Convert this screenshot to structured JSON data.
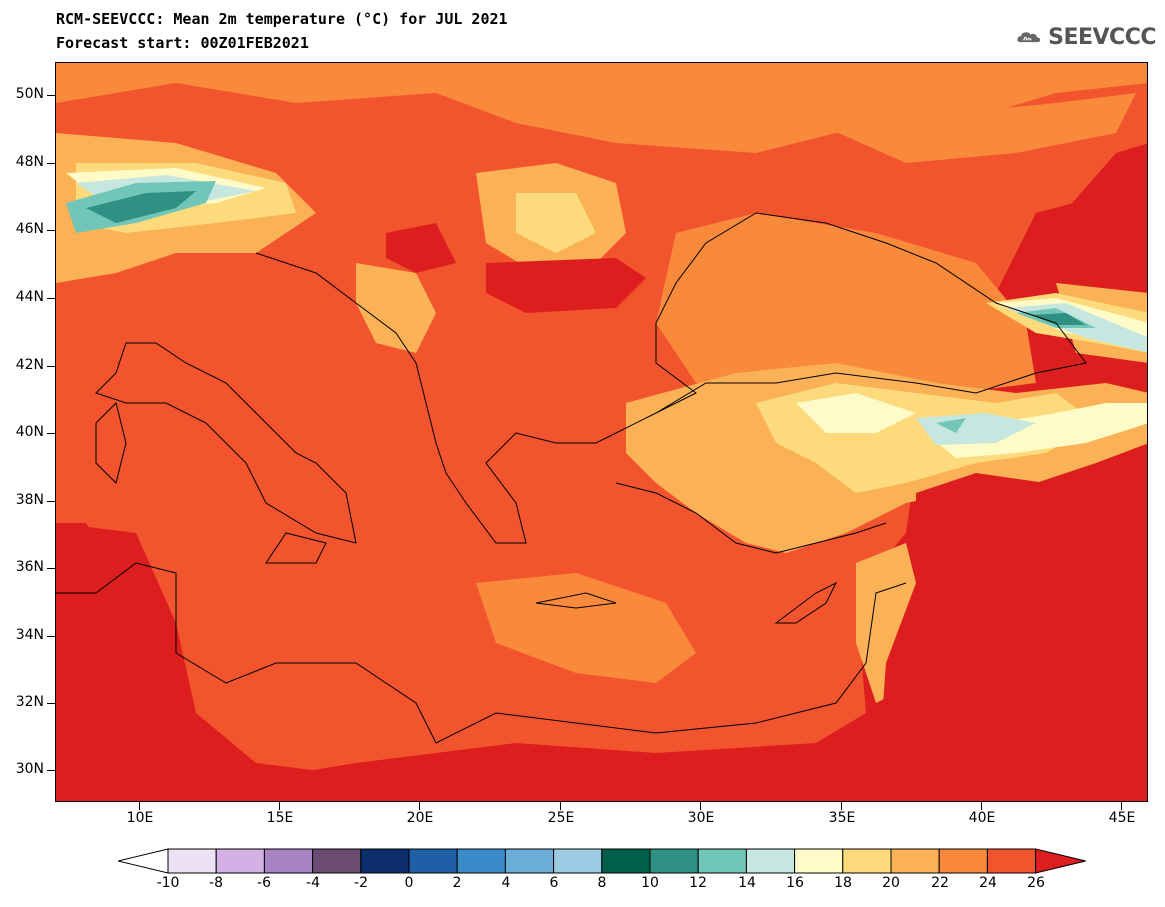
{
  "header": {
    "title_line1": "RCM-SEEVCCC: Mean 2m temperature (°C) for JUL 2021",
    "title_line2": "Forecast start: 00Z01FEB2021"
  },
  "logo": {
    "text": "SEEVCCC",
    "icon": "cloud-icon"
  },
  "map": {
    "lat_labels": [
      "50N",
      "48N",
      "46N",
      "44N",
      "42N",
      "40N",
      "38N",
      "36N",
      "34N",
      "32N",
      "30N"
    ],
    "lon_labels": [
      "10E",
      "15E",
      "20E",
      "25E",
      "30E",
      "35E",
      "40E",
      "45E"
    ]
  },
  "colorbar": {
    "labels": [
      "-10",
      "-8",
      "-6",
      "-4",
      "-2",
      "0",
      "2",
      "4",
      "6",
      "8",
      "10",
      "12",
      "14",
      "16",
      "18",
      "20",
      "22",
      "24",
      "26"
    ],
    "colors": [
      "#ffffff",
      "#ede2f4",
      "#d4b0e4",
      "#a884c4",
      "#6b4b72",
      "#0b2e6b",
      "#1f5fa6",
      "#3b8bc8",
      "#6aaed8",
      "#9ccbe3",
      "#005f4a",
      "#2e9184",
      "#72c6b8",
      "#c6e7e0",
      "#fffbc8",
      "#fddb7c",
      "#fbb155",
      "#f98a3c",
      "#f2542d",
      "#dc1e1e"
    ],
    "colors_meaning": "lowest triangle (<-10), 18 bins, highest triangle (>26)"
  }
}
